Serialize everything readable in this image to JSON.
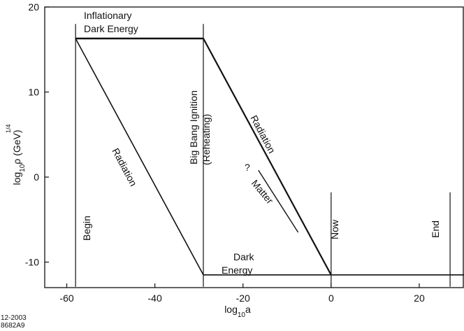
{
  "chart_data": {
    "type": "line",
    "xlabel": "log10a",
    "ylabel": "log10ρ (GeV)",
    "ylabel_superscript": "1/4",
    "xlim": [
      -65,
      30
    ],
    "ylim": [
      -13,
      20
    ],
    "xticks": [
      -60,
      -40,
      -20,
      0,
      20
    ],
    "yticks": [
      -10,
      0,
      10,
      20
    ],
    "series": [
      {
        "key": "top",
        "stroke_width": 2.4,
        "points": [
          [
            -58,
            16.3
          ],
          [
            -29,
            16.3
          ]
        ]
      },
      {
        "key": "rad-left",
        "stroke_width": 1.6,
        "points": [
          [
            -58,
            16.3
          ],
          [
            -29,
            -11.5
          ]
        ]
      },
      {
        "key": "rad-right",
        "stroke_width": 2.2,
        "points": [
          [
            -29,
            16.3
          ],
          [
            0,
            -11.5
          ]
        ]
      },
      {
        "key": "matter",
        "stroke_width": 1.4,
        "points": [
          [
            -16.5,
            0.8
          ],
          [
            -7.5,
            -6.5
          ]
        ]
      },
      {
        "key": "dark-energy",
        "stroke_width": 1.6,
        "points": [
          [
            -29,
            -11.5
          ],
          [
            31,
            -11.5
          ]
        ]
      }
    ],
    "vlines": [
      {
        "x": -58,
        "y_from": 18,
        "y_to": -12.9
      },
      {
        "x": -29,
        "y_from": 18,
        "y_to": -12.9
      },
      {
        "x": 0,
        "y_from": -1.8,
        "y_to": -12.9
      },
      {
        "x": 27,
        "y_from": -1.8,
        "y_to": -12.9
      }
    ],
    "annotations": {
      "inflationary": [
        "Inflationary",
        "Dark Energy"
      ],
      "begin": "Begin",
      "big_bang": [
        "Big Bang Ignition",
        "(Reheating)"
      ],
      "radiation_left": "Radiation",
      "radiation_right": "Radiation",
      "question": "?",
      "matter": "Matter",
      "dark_energy": [
        "Dark",
        "Energy"
      ],
      "now": "Now",
      "end": "End"
    },
    "footnote": [
      "12-2003",
      "8682A9"
    ]
  }
}
